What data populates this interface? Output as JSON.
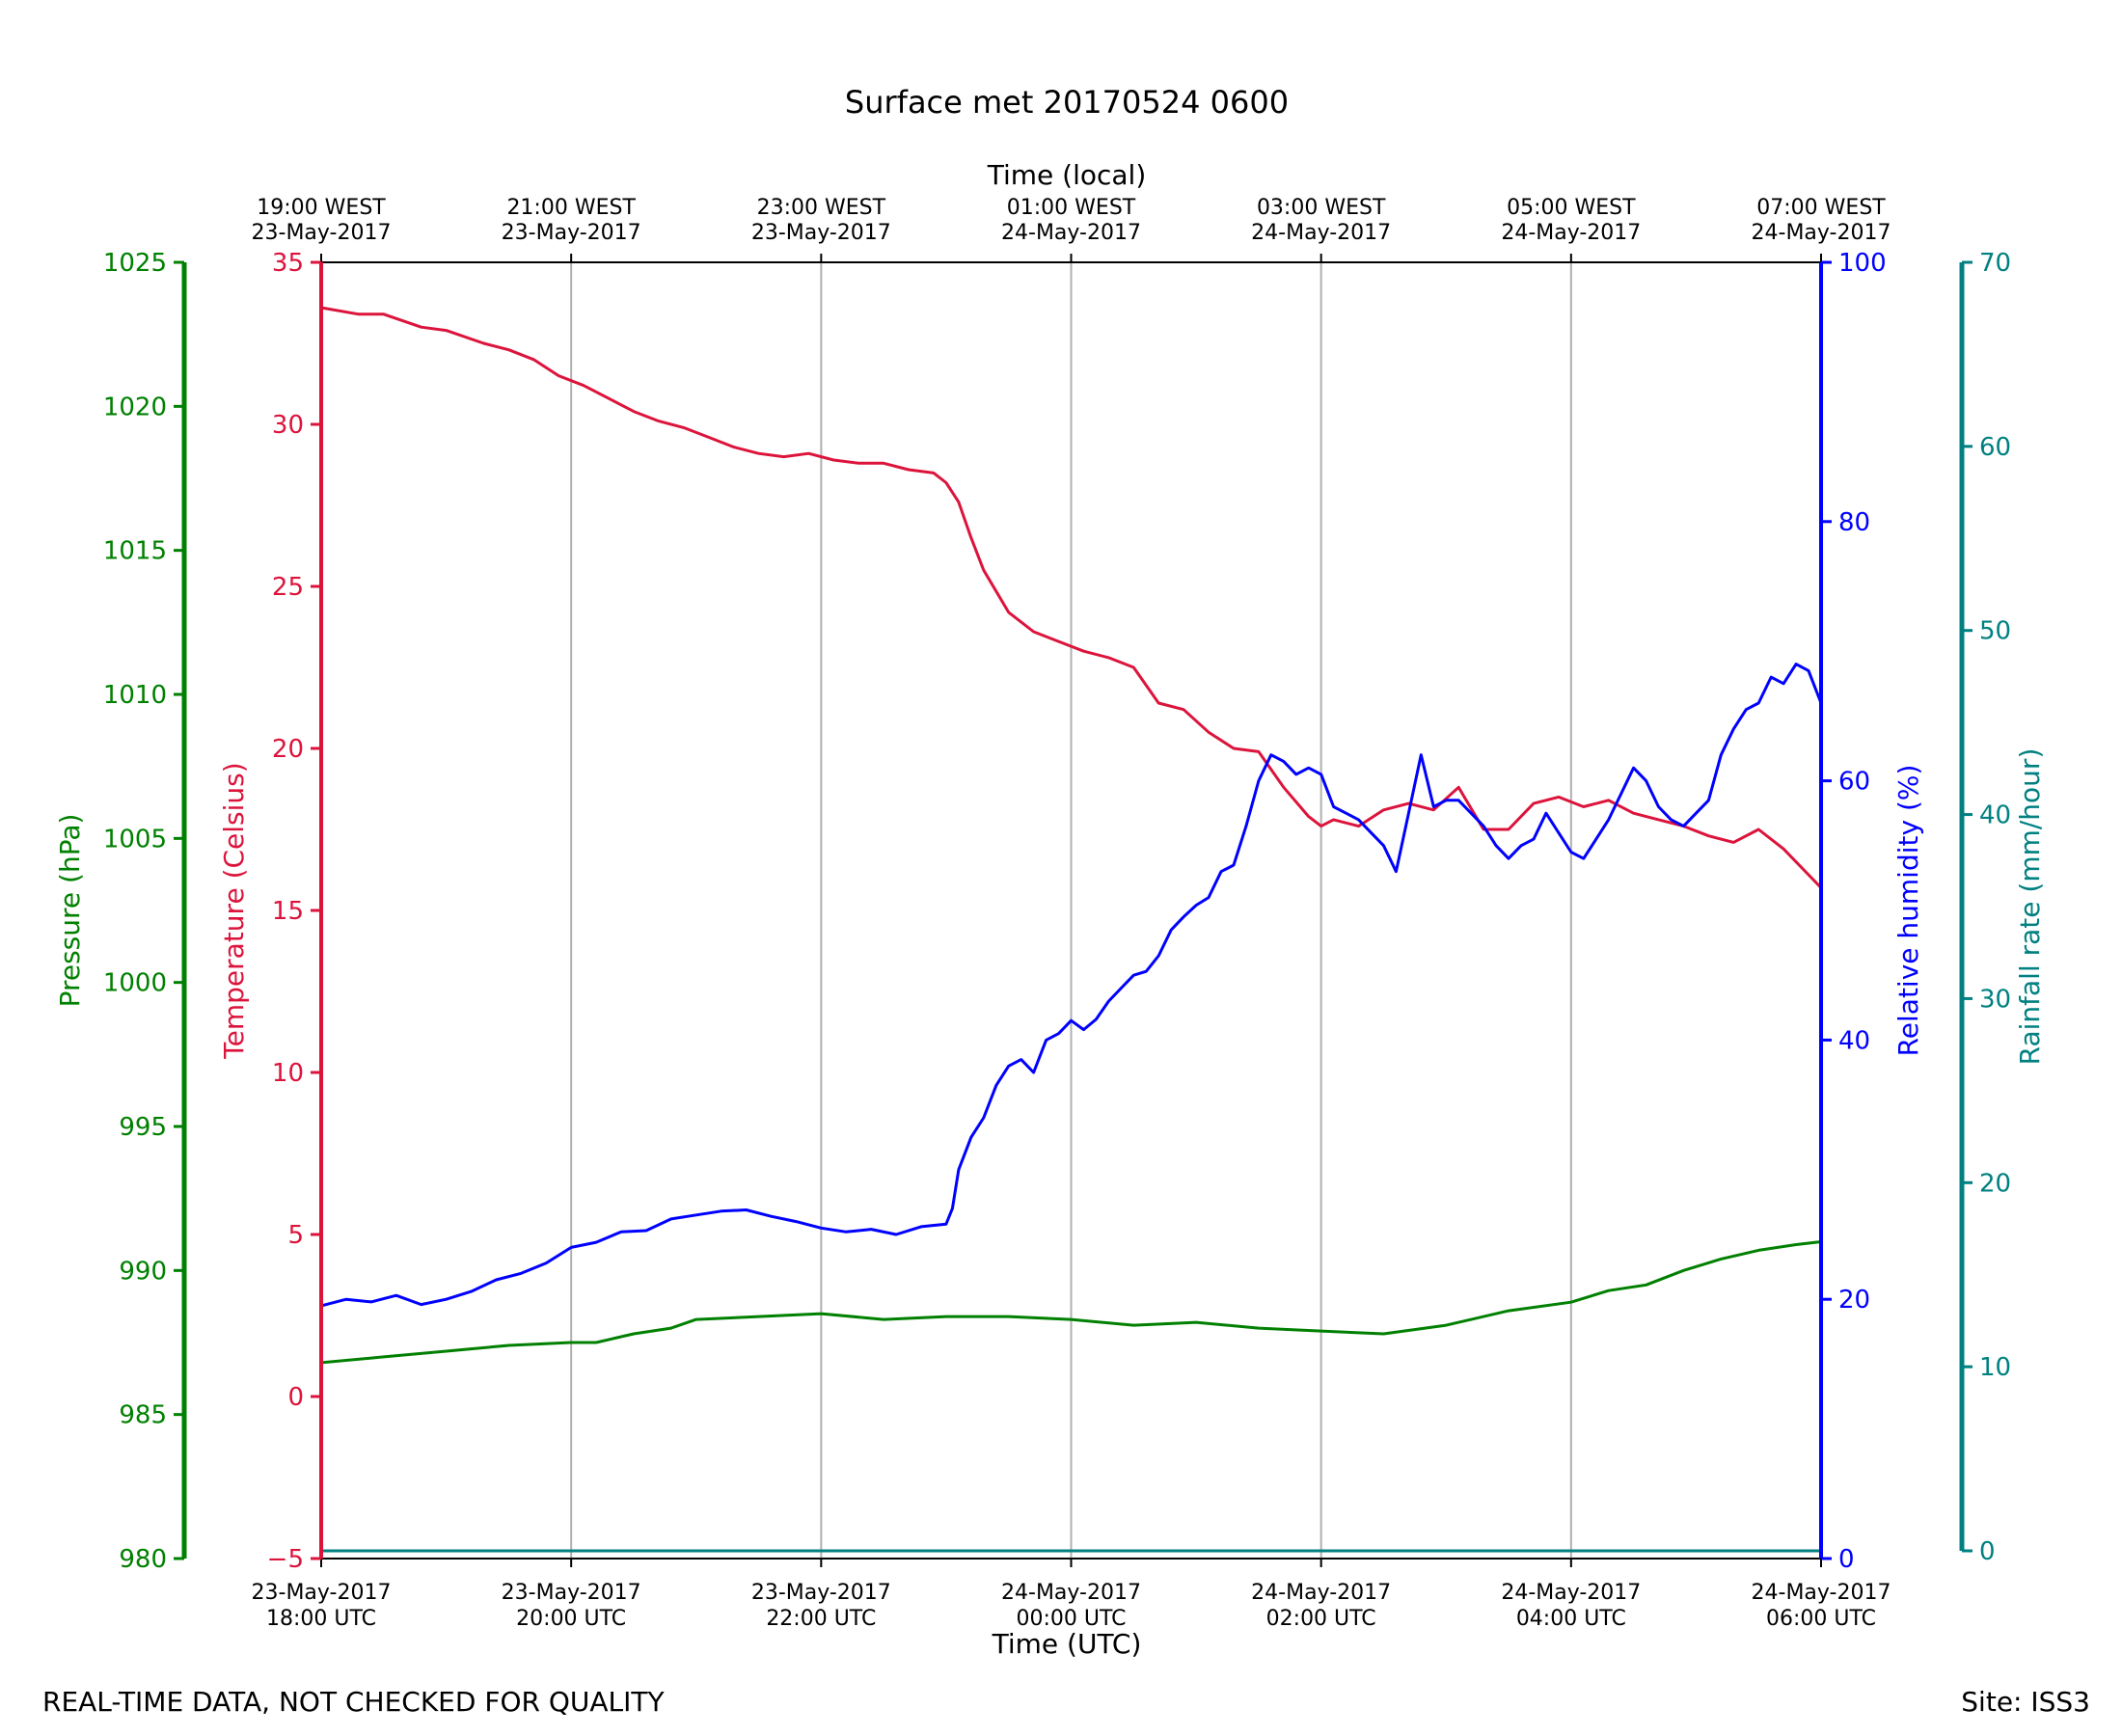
{
  "chart_data": {
    "type": "line",
    "title": "Surface met 20170524 0600",
    "xlabel": "Time (UTC)",
    "x2label": "Time (local)",
    "footer_left": "REAL-TIME DATA, NOT CHECKED FOR QUALITY",
    "footer_right": "Site: ISS3",
    "x_hours_range": [
      0,
      12
    ],
    "x_ticks_utc": [
      {
        "hour": 0,
        "date": "23-May-2017",
        "time": "18:00 UTC"
      },
      {
        "hour": 2,
        "date": "23-May-2017",
        "time": "20:00 UTC"
      },
      {
        "hour": 4,
        "date": "23-May-2017",
        "time": "22:00 UTC"
      },
      {
        "hour": 6,
        "date": "24-May-2017",
        "time": "00:00 UTC"
      },
      {
        "hour": 8,
        "date": "24-May-2017",
        "time": "02:00 UTC"
      },
      {
        "hour": 10,
        "date": "24-May-2017",
        "time": "04:00 UTC"
      },
      {
        "hour": 12,
        "date": "24-May-2017",
        "time": "06:00 UTC"
      }
    ],
    "x_ticks_local": [
      {
        "hour": 0,
        "time": "19:00 WEST",
        "date": "23-May-2017"
      },
      {
        "hour": 2,
        "time": "21:00 WEST",
        "date": "23-May-2017"
      },
      {
        "hour": 4,
        "time": "23:00 WEST",
        "date": "23-May-2017"
      },
      {
        "hour": 6,
        "time": "01:00 WEST",
        "date": "24-May-2017"
      },
      {
        "hour": 8,
        "time": "03:00 WEST",
        "date": "24-May-2017"
      },
      {
        "hour": 10,
        "time": "05:00 WEST",
        "date": "24-May-2017"
      },
      {
        "hour": 12,
        "time": "07:00 WEST",
        "date": "24-May-2017"
      }
    ],
    "axes": {
      "pressure": {
        "label": "Pressure (hPa)",
        "color": "#008000",
        "ylim": [
          980,
          1025
        ],
        "ticks": [
          980,
          985,
          990,
          995,
          1000,
          1005,
          1010,
          1015,
          1020,
          1025
        ],
        "tick_labels": [
          "980",
          "985",
          "990",
          "995",
          "1000",
          "1005",
          "1010",
          "1015",
          "1020",
          "1025"
        ]
      },
      "temperature": {
        "label": "Temperature (Celsius)",
        "color": "#dc143c",
        "ylim": [
          -5,
          35
        ],
        "ticks": [
          -5,
          0,
          5,
          10,
          15,
          20,
          25,
          30,
          35
        ],
        "tick_labels": [
          "−5",
          "0",
          "5",
          "10",
          "15",
          "20",
          "25",
          "30",
          "35"
        ]
      },
      "humidity": {
        "label": "Relative humidity (%)",
        "color": "#0000ff",
        "ylim": [
          0,
          100
        ],
        "ticks": [
          0,
          20,
          40,
          60,
          80,
          100
        ],
        "tick_labels": [
          "0",
          "20",
          "40",
          "60",
          "80",
          "100"
        ]
      },
      "rainfall": {
        "label": "Rainfall rate (mm/hour)",
        "color": "#008080",
        "ylim": [
          0,
          70
        ],
        "ticks": [
          0,
          10,
          20,
          30,
          40,
          50,
          60,
          70
        ],
        "tick_labels": [
          "0",
          "10",
          "20",
          "30",
          "40",
          "50",
          "60",
          "70"
        ]
      }
    },
    "series": [
      {
        "name": "Temperature",
        "axis": "temperature",
        "color": "#dc143c",
        "x": [
          0,
          0.3,
          0.5,
          0.8,
          1.0,
          1.3,
          1.5,
          1.7,
          1.9,
          2.1,
          2.3,
          2.5,
          2.7,
          2.9,
          3.1,
          3.3,
          3.5,
          3.7,
          3.9,
          4.1,
          4.3,
          4.5,
          4.7,
          4.9,
          5.0,
          5.1,
          5.2,
          5.3,
          5.5,
          5.7,
          5.9,
          6.1,
          6.3,
          6.5,
          6.7,
          6.9,
          7.1,
          7.3,
          7.5,
          7.7,
          7.9,
          8.0,
          8.1,
          8.3,
          8.5,
          8.7,
          8.9,
          9.1,
          9.3,
          9.5,
          9.7,
          9.9,
          10.1,
          10.3,
          10.5,
          10.7,
          10.9,
          11.1,
          11.3,
          11.5,
          11.7,
          11.9,
          12.0
        ],
        "values": [
          33.6,
          33.4,
          33.4,
          33.0,
          32.9,
          32.5,
          32.3,
          32.0,
          31.5,
          31.2,
          30.8,
          30.4,
          30.1,
          29.9,
          29.6,
          29.3,
          29.1,
          29.0,
          29.1,
          28.9,
          28.8,
          28.8,
          28.6,
          28.5,
          28.2,
          27.6,
          26.5,
          25.5,
          24.2,
          23.6,
          23.3,
          23.0,
          22.8,
          22.5,
          21.4,
          21.2,
          20.5,
          20.0,
          19.9,
          18.8,
          17.9,
          17.6,
          17.8,
          17.6,
          18.1,
          18.3,
          18.1,
          18.8,
          17.5,
          17.5,
          18.3,
          18.5,
          18.2,
          18.4,
          18.0,
          17.8,
          17.6,
          17.3,
          17.1,
          17.5,
          16.9,
          16.1,
          15.7
        ],
        "line_width": 3
      },
      {
        "name": "Relative humidity",
        "axis": "humidity",
        "color": "#0000ff",
        "x": [
          0,
          0.2,
          0.4,
          0.6,
          0.8,
          1.0,
          1.2,
          1.4,
          1.6,
          1.8,
          2.0,
          2.2,
          2.4,
          2.6,
          2.8,
          3.0,
          3.2,
          3.4,
          3.6,
          3.8,
          4.0,
          4.2,
          4.4,
          4.6,
          4.8,
          5.0,
          5.05,
          5.1,
          5.2,
          5.3,
          5.4,
          5.5,
          5.6,
          5.7,
          5.8,
          5.9,
          6.0,
          6.1,
          6.2,
          6.3,
          6.4,
          6.5,
          6.6,
          6.7,
          6.8,
          6.9,
          7.0,
          7.1,
          7.2,
          7.3,
          7.4,
          7.5,
          7.6,
          7.7,
          7.8,
          7.9,
          8.0,
          8.1,
          8.2,
          8.3,
          8.4,
          8.5,
          8.6,
          8.7,
          8.8,
          8.9,
          9.0,
          9.1,
          9.2,
          9.3,
          9.4,
          9.5,
          9.6,
          9.7,
          9.8,
          9.9,
          10.0,
          10.1,
          10.2,
          10.3,
          10.4,
          10.5,
          10.6,
          10.7,
          10.8,
          10.9,
          11.0,
          11.1,
          11.2,
          11.3,
          11.4,
          11.5,
          11.6,
          11.7,
          11.8,
          11.9,
          12.0
        ],
        "values": [
          19.5,
          20.0,
          19.8,
          20.3,
          19.6,
          20.0,
          20.6,
          21.5,
          22.0,
          22.8,
          24.0,
          24.4,
          25.2,
          25.3,
          26.2,
          26.5,
          26.8,
          26.9,
          26.4,
          26.0,
          25.5,
          25.2,
          25.4,
          25.0,
          25.6,
          25.8,
          27.0,
          30.0,
          32.5,
          34.0,
          36.5,
          38.0,
          38.5,
          37.5,
          40.0,
          40.5,
          41.5,
          40.8,
          41.6,
          43.0,
          44.0,
          45.0,
          45.3,
          46.5,
          48.5,
          49.5,
          50.4,
          51.0,
          53.0,
          53.5,
          56.5,
          60.0,
          62.0,
          61.5,
          60.5,
          61.0,
          60.5,
          58.0,
          57.5,
          57.0,
          56.0,
          55.0,
          53.0,
          57.5,
          62.0,
          58.0,
          58.5,
          58.5,
          57.5,
          56.5,
          55.0,
          54.0,
          55.0,
          55.5,
          57.5,
          56.0,
          54.5,
          54.0,
          55.5,
          57.0,
          59.0,
          61.0,
          60.0,
          58.0,
          57.0,
          56.5,
          57.5,
          58.5,
          62.0,
          64.0,
          65.5,
          66.0,
          68.0,
          67.5,
          69.0,
          68.5,
          66.0
        ],
        "line_width": 3
      },
      {
        "name": "Pressure",
        "axis": "pressure",
        "color": "#008000",
        "x": [
          0,
          0.5,
          1.0,
          1.5,
          2.0,
          2.2,
          2.5,
          2.8,
          3.0,
          3.5,
          4.0,
          4.5,
          5.0,
          5.5,
          6.0,
          6.5,
          7.0,
          7.5,
          8.0,
          8.5,
          9.0,
          9.5,
          10.0,
          10.3,
          10.6,
          10.9,
          11.2,
          11.5,
          11.8,
          12.0
        ],
        "values": [
          986.8,
          987.0,
          987.2,
          987.4,
          987.5,
          987.5,
          987.8,
          988.0,
          988.3,
          988.4,
          988.5,
          988.3,
          988.4,
          988.4,
          988.3,
          988.1,
          988.2,
          988.0,
          987.9,
          987.8,
          988.1,
          988.6,
          988.9,
          989.3,
          989.5,
          990.0,
          990.4,
          990.7,
          990.9,
          991.0
        ],
        "line_width": 3
      },
      {
        "name": "Rainfall rate",
        "axis": "rainfall",
        "color": "#008080",
        "x": [
          0,
          12
        ],
        "values": [
          0,
          0
        ],
        "line_width": 3
      }
    ]
  }
}
